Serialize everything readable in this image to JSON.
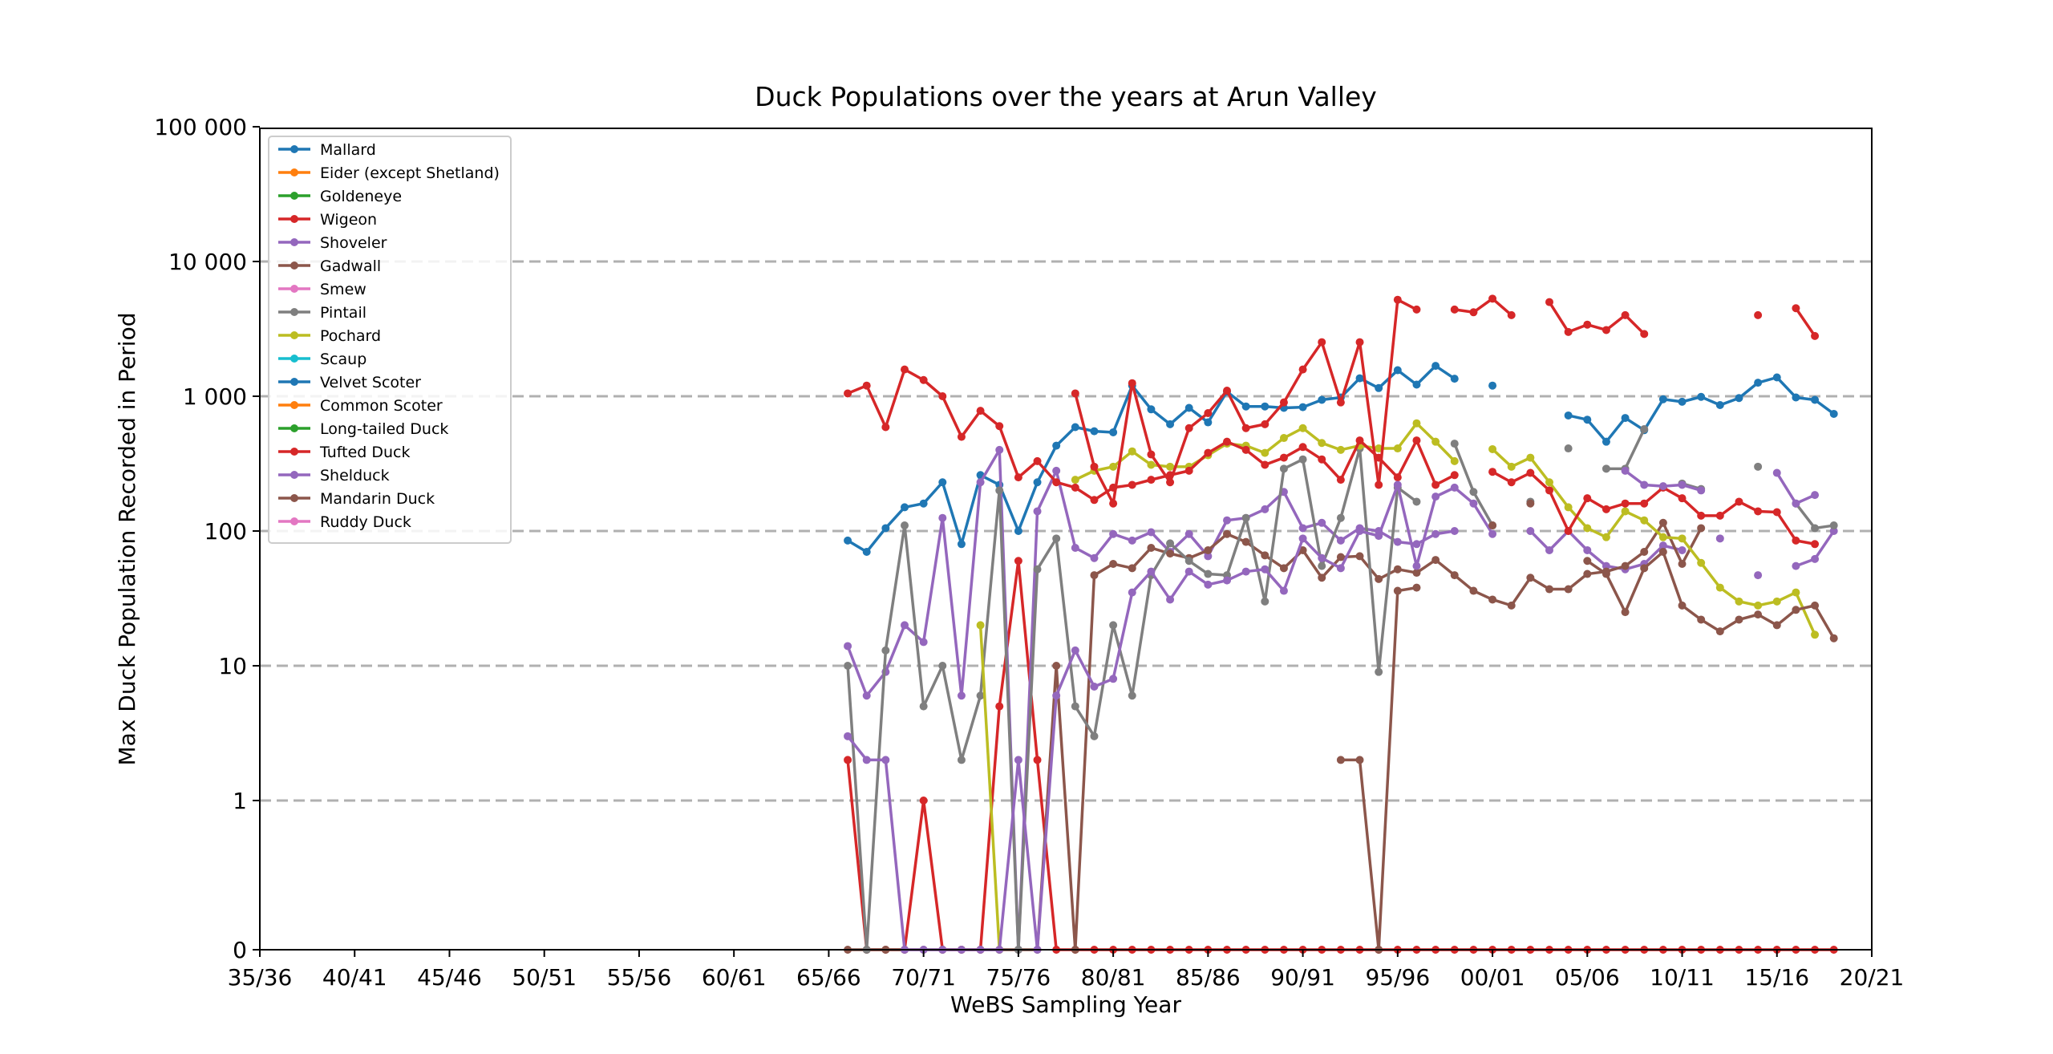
{
  "chart_data": {
    "type": "line",
    "title": "Duck Populations over the years at Arun Valley",
    "xlabel": "WeBS Sampling Year",
    "ylabel": "Max Duck Population Recorded in Period",
    "yscale": "symlog",
    "y_ticks": [
      0,
      1,
      10,
      100,
      1000,
      10000,
      100000
    ],
    "y_tick_labels": [
      "0",
      "1",
      "10",
      "100",
      "1 000",
      "10 000",
      "100 000"
    ],
    "x_ticks": [
      1935,
      1940,
      1945,
      1950,
      1955,
      1960,
      1965,
      1970,
      1975,
      1980,
      1985,
      1990,
      1995,
      2000,
      2005,
      2010,
      2015,
      2020
    ],
    "x_tick_labels": [
      "35/36",
      "40/41",
      "45/46",
      "50/51",
      "55/56",
      "60/61",
      "65/66",
      "70/71",
      "75/76",
      "80/81",
      "85/86",
      "90/91",
      "95/96",
      "00/01",
      "05/06",
      "10/11",
      "15/16",
      "20/21"
    ],
    "xlim": [
      1935,
      2020
    ],
    "grid": "horizontal dashed",
    "legend_position": "upper-left",
    "x_start_year": 1966,
    "series": [
      {
        "name": "Mallard",
        "color": "#1f77b4",
        "values": [
          85,
          70,
          105,
          150,
          160,
          230,
          80,
          260,
          220,
          100,
          230,
          430,
          590,
          550,
          540,
          1200,
          800,
          620,
          820,
          640,
          1080,
          840,
          840,
          820,
          830,
          940,
          980,
          1360,
          1150,
          1560,
          1220,
          1680,
          1350,
          null,
          1200,
          null,
          null,
          null,
          720,
          670,
          460,
          690,
          560,
          950,
          910,
          990,
          860,
          970,
          1260,
          1380,
          980,
          940,
          740
        ]
      },
      {
        "name": "Eider (except Shetland)",
        "color": "#ff7f0e",
        "values": []
      },
      {
        "name": "Goldeneye",
        "color": "#2ca02c",
        "values": []
      },
      {
        "name": "Wigeon",
        "color": "#d62728",
        "values": [
          2,
          0,
          0,
          0,
          1,
          0,
          0,
          0,
          5,
          60,
          2,
          0,
          0,
          0,
          0,
          0,
          0,
          0,
          0,
          0,
          0,
          0,
          0,
          0,
          0,
          0,
          0,
          0,
          0,
          0,
          0,
          0,
          0,
          0,
          0,
          0,
          0,
          0,
          0,
          0,
          0,
          0,
          0,
          0,
          0,
          0,
          0,
          0,
          0,
          0,
          0,
          0,
          0
        ]
      },
      {
        "name": "Shoveler",
        "color": "#9467bd",
        "values": [
          14,
          6,
          9,
          20,
          15,
          125,
          6,
          230,
          400,
          0,
          140,
          280,
          75,
          63,
          95,
          85,
          98,
          70,
          95,
          65,
          120,
          125,
          145,
          195,
          105,
          115,
          85,
          105,
          100,
          83,
          80,
          95,
          100,
          null,
          null,
          null,
          100,
          72,
          100,
          72,
          55,
          52,
          57,
          78,
          72,
          null,
          88,
          null,
          47,
          null,
          55,
          62,
          100
        ]
      },
      {
        "name": "Gadwall",
        "color": "#8c564b",
        "values": [
          0,
          0,
          0,
          0,
          0,
          0,
          0,
          0,
          0,
          0,
          0,
          10,
          0,
          47,
          57,
          53,
          75,
          68,
          63,
          72,
          95,
          83,
          66,
          53,
          72,
          45,
          64,
          65,
          44,
          52,
          49,
          61,
          47,
          36,
          31,
          28,
          45,
          37,
          37,
          48,
          50,
          55,
          70,
          115,
          57,
          105,
          null,
          null,
          null,
          null,
          null,
          null,
          null
        ]
      },
      {
        "name": "Smew",
        "color": "#e377c2",
        "values": []
      },
      {
        "name": "Pintail",
        "color": "#7f7f7f",
        "values": [
          10,
          0,
          13,
          110,
          5,
          10,
          2,
          6,
          200,
          0,
          52,
          88,
          5,
          3,
          20,
          6,
          47,
          81,
          60,
          48,
          47,
          125,
          30,
          290,
          340,
          55,
          125,
          410,
          9,
          210,
          165,
          null,
          445,
          195,
          110,
          null,
          165,
          null,
          410,
          null,
          290,
          290,
          570,
          null,
          225,
          205,
          null,
          null,
          300,
          null,
          160,
          105,
          110
        ]
      },
      {
        "name": "Pochard",
        "color": "#bcbd22",
        "values": [
          null,
          null,
          null,
          null,
          null,
          null,
          null,
          20,
          0,
          null,
          null,
          null,
          240,
          280,
          300,
          390,
          310,
          300,
          300,
          365,
          445,
          430,
          380,
          490,
          580,
          450,
          400,
          430,
          410,
          410,
          630,
          460,
          330,
          null,
          405,
          300,
          350,
          230,
          150,
          105,
          90,
          140,
          120,
          90,
          88,
          58,
          38,
          30,
          28,
          30,
          35,
          17
        ]
      },
      {
        "name": "Scaup",
        "color": "#17becf",
        "values": []
      },
      {
        "name": "Velvet Scoter",
        "color": "#1f77b4",
        "values": []
      },
      {
        "name": "Common Scoter",
        "color": "#ff7f0e",
        "values": []
      },
      {
        "name": "Long-tailed Duck",
        "color": "#2ca02c",
        "values": []
      },
      {
        "name": "Tufted Duck",
        "color": "#d62728",
        "values": [
          1050,
          1200,
          590,
          1580,
          1320,
          1000,
          500,
          780,
          600,
          250,
          330,
          230,
          210,
          170,
          210,
          220,
          240,
          260,
          280,
          380,
          460,
          400,
          310,
          350,
          420,
          340,
          240,
          470,
          350,
          250,
          470,
          220,
          260,
          null,
          275,
          230,
          270,
          200,
          100,
          175,
          145,
          160,
          160,
          210,
          175,
          130,
          130,
          165,
          140,
          138,
          85,
          80
        ]
      },
      {
        "name": "Wigeon",
        "color": "#d62728",
        "values": [
          null,
          null,
          null,
          null,
          null,
          null,
          null,
          null,
          null,
          null,
          null,
          null,
          1050,
          300,
          160,
          1250,
          370,
          230,
          580,
          750,
          1100,
          580,
          620,
          900,
          1580,
          2520,
          900,
          2520,
          220,
          5200,
          4400,
          null,
          4400,
          4200,
          5300,
          4000,
          null,
          5000,
          3000,
          3400,
          3100,
          4000,
          2900,
          null,
          null,
          null,
          null,
          null,
          4000,
          null,
          4500,
          2800
        ]
      },
      {
        "name": "Shelduck",
        "color": "#9467bd",
        "values": [
          3,
          2,
          2,
          0,
          0,
          0,
          0,
          0,
          0,
          2,
          0,
          6,
          13,
          7,
          8,
          35,
          50,
          31,
          50,
          40,
          43,
          50,
          52,
          36,
          88,
          63,
          53,
          100,
          92,
          220,
          55,
          180,
          210,
          160,
          95,
          null,
          null,
          null,
          null,
          null,
          null,
          280,
          220,
          215,
          220,
          200,
          null,
          null,
          null,
          270,
          160,
          185
        ]
      },
      {
        "name": "Mandarin Duck",
        "color": "#8c564b",
        "values": [
          null,
          null,
          null,
          null,
          null,
          null,
          null,
          null,
          null,
          null,
          null,
          null,
          null,
          null,
          null,
          null,
          null,
          null,
          null,
          null,
          null,
          null,
          null,
          null,
          null,
          null,
          2,
          2,
          0,
          36,
          38,
          null,
          null,
          null,
          110,
          null,
          160,
          null,
          null,
          60,
          48,
          25,
          53,
          70,
          28,
          22,
          18,
          22,
          24,
          20,
          26,
          28,
          16
        ]
      },
      {
        "name": "Ruddy Duck",
        "color": "#e377c2",
        "values": []
      }
    ]
  }
}
